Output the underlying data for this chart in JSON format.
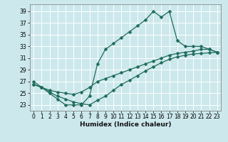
{
  "xlabel": "Humidex (Indice chaleur)",
  "bg_color": "#cce8ec",
  "grid_color": "#ffffff",
  "line_color": "#1e6b5a",
  "xlim": [
    -0.5,
    23.5
  ],
  "ylim": [
    22.0,
    40.2
  ],
  "xticks": [
    0,
    1,
    2,
    3,
    4,
    5,
    6,
    7,
    8,
    9,
    10,
    11,
    12,
    13,
    14,
    15,
    16,
    17,
    18,
    19,
    20,
    21,
    22,
    23
  ],
  "yticks": [
    23,
    25,
    27,
    29,
    31,
    33,
    35,
    37,
    39
  ],
  "curve1_x": [
    0,
    1,
    2,
    3,
    4,
    5,
    6,
    7,
    8,
    9,
    10,
    11,
    12,
    13,
    14,
    15,
    16,
    17,
    18,
    19,
    20,
    21,
    22,
    23
  ],
  "curve1_y": [
    27,
    26,
    25,
    24,
    23,
    23,
    23,
    24.5,
    30,
    32.5,
    33.5,
    34.5,
    35.5,
    36.5,
    37.5,
    39,
    38,
    39,
    34,
    33,
    33,
    33,
    32.5,
    32
  ],
  "curve2_x": [
    0,
    1,
    2,
    3,
    4,
    5,
    6,
    7,
    8,
    9,
    10,
    11,
    12,
    13,
    14,
    15,
    16,
    17,
    18,
    19,
    20,
    21,
    22,
    23
  ],
  "curve2_y": [
    26.5,
    26,
    25.5,
    25.2,
    25,
    24.8,
    25.2,
    26,
    27,
    27.5,
    28,
    28.5,
    29,
    29.5,
    30,
    30.5,
    31,
    31.5,
    31.8,
    32,
    32.2,
    32.5,
    32.5,
    32
  ],
  "curve3_x": [
    0,
    1,
    2,
    3,
    4,
    5,
    6,
    7,
    8,
    9,
    10,
    11,
    12,
    13,
    14,
    15,
    16,
    17,
    18,
    19,
    20,
    21,
    22,
    23
  ],
  "curve3_y": [
    26.5,
    26,
    25.2,
    24.5,
    24.0,
    23.5,
    23.2,
    23.0,
    23.8,
    24.5,
    25.5,
    26.5,
    27.2,
    28.0,
    28.8,
    29.5,
    30.2,
    30.8,
    31.2,
    31.5,
    31.7,
    31.8,
    31.9,
    32.0
  ],
  "marker_size": 2.5,
  "tick_fontsize": 5.5,
  "xlabel_fontsize": 6.5
}
